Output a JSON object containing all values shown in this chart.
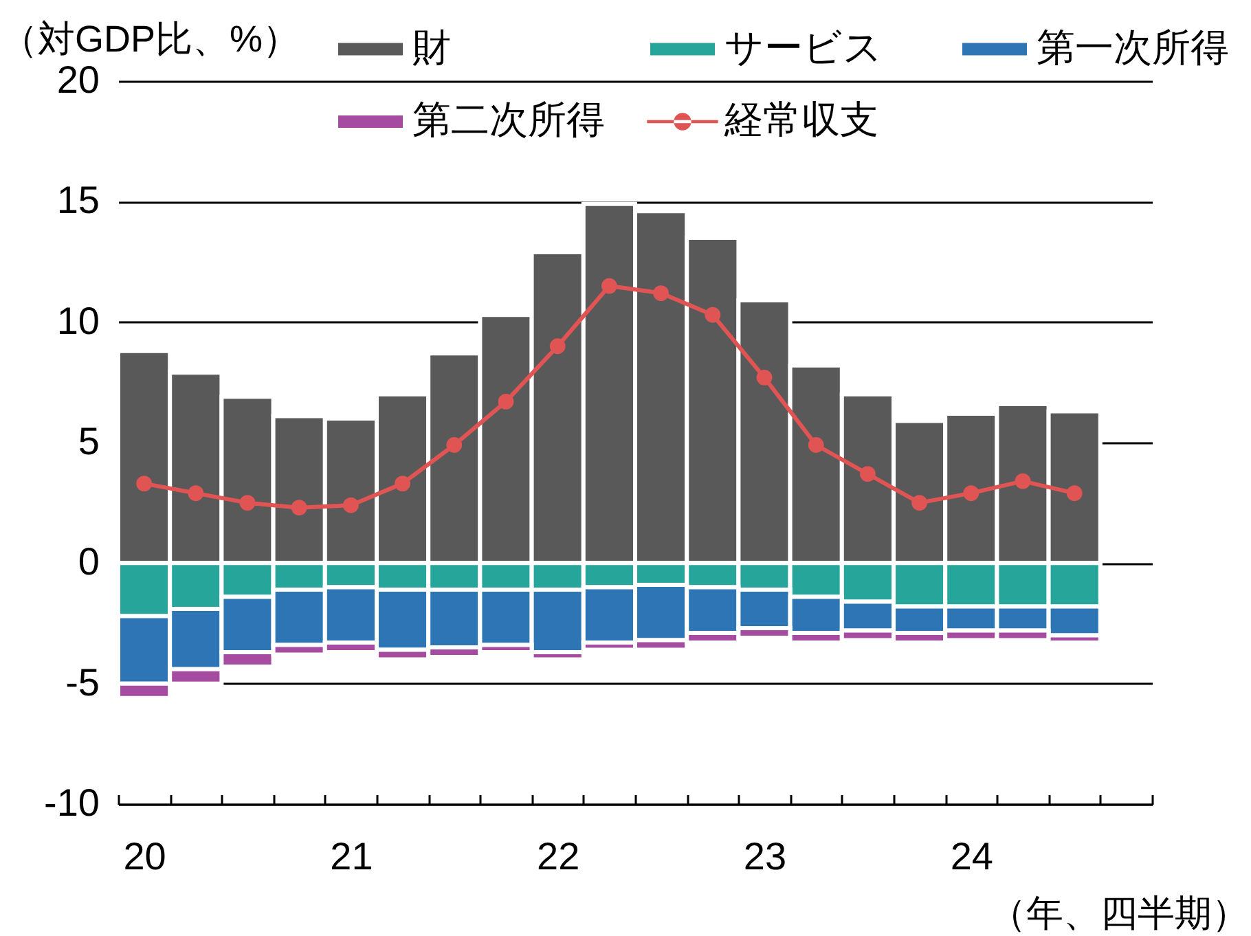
{
  "chart_data": {
    "type": "bar",
    "xlabel": "（年、四半期）",
    "ylabel": "（対GDP比、%）",
    "categories": [
      "20",
      null,
      null,
      null,
      "21",
      null,
      null,
      null,
      "22",
      null,
      null,
      null,
      "23",
      null,
      null,
      null,
      "24",
      null,
      null,
      null
    ],
    "series": [
      {
        "name": "財",
        "color": "#595959",
        "values": [
          8.8,
          7.9,
          6.9,
          6.1,
          6.0,
          7.0,
          8.7,
          10.3,
          12.9,
          14.9,
          14.6,
          13.5,
          10.9,
          8.2,
          7.0,
          5.9,
          6.2,
          6.6,
          6.3,
          null
        ]
      },
      {
        "name": "サービス",
        "color": "#26a69a",
        "values": [
          -2.2,
          -1.9,
          -1.4,
          -1.1,
          -1.0,
          -1.1,
          -1.1,
          -1.1,
          -1.1,
          -1.0,
          -0.9,
          -1.0,
          -1.1,
          -1.4,
          -1.6,
          -1.8,
          -1.8,
          -1.8,
          -1.8,
          null
        ]
      },
      {
        "name": "第一次所得",
        "color": "#2e75b6",
        "values": [
          -2.8,
          -2.5,
          -2.3,
          -2.3,
          -2.3,
          -2.5,
          -2.4,
          -2.3,
          -2.6,
          -2.3,
          -2.3,
          -1.9,
          -1.6,
          -1.5,
          -1.2,
          -1.1,
          -1.0,
          -1.0,
          -1.2,
          null
        ]
      },
      {
        "name": "第二次所得",
        "color": "#a64ca0",
        "values": [
          -0.6,
          -0.6,
          -0.6,
          -0.4,
          -0.4,
          -0.4,
          -0.4,
          -0.3,
          -0.3,
          -0.3,
          -0.4,
          -0.4,
          -0.4,
          -0.4,
          -0.4,
          -0.4,
          -0.4,
          -0.4,
          -0.3,
          null
        ]
      },
      {
        "name": "経常収支",
        "type": "line",
        "color": "#e05454",
        "values": [
          3.3,
          2.9,
          2.5,
          2.3,
          2.4,
          3.3,
          4.9,
          6.7,
          9.0,
          11.5,
          11.2,
          10.3,
          7.7,
          4.9,
          3.7,
          2.5,
          2.9,
          3.4,
          2.9,
          null
        ]
      }
    ],
    "stacked": true,
    "ylim": [
      -10,
      20
    ],
    "yticks": [
      -10,
      -5,
      0,
      5,
      10,
      15,
      20
    ],
    "grid": "y",
    "legend": "top",
    "marker": "circle"
  }
}
